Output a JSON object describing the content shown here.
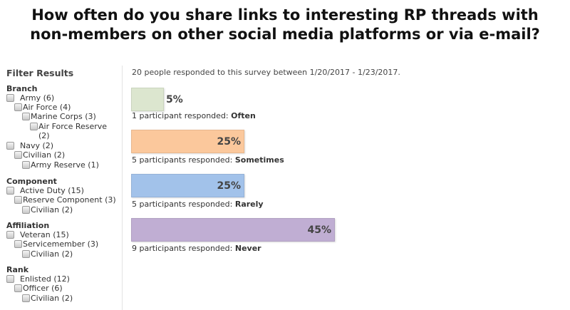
{
  "title_line1": "How often do you share links to interesting RP threads with",
  "title_line2": "non-members on other social media platforms or via e-mail?",
  "sidebar": {
    "heading": "Filter Results",
    "groups": [
      {
        "name": "Branch",
        "items": [
          {
            "label": "Army (6)"
          },
          {
            "label": "Air Force (4)"
          },
          {
            "label": "Marine Corps (3)"
          },
          {
            "label": "Air Force Reserve (2)"
          },
          {
            "label": "Navy (2)"
          },
          {
            "label": "Civilian (2)"
          },
          {
            "label": "Army Reserve (1)"
          }
        ]
      },
      {
        "name": "Component",
        "items": [
          {
            "label": "Active Duty (15)"
          },
          {
            "label": "Reserve Component (3)"
          },
          {
            "label": "Civilian (2)"
          }
        ]
      },
      {
        "name": "Affiliation",
        "items": [
          {
            "label": "Veteran (15)"
          },
          {
            "label": "Servicemember (3)"
          },
          {
            "label": "Civilian (2)"
          }
        ]
      },
      {
        "name": "Rank",
        "items": [
          {
            "label": "Enlisted (12)"
          },
          {
            "label": "Officer (6)"
          },
          {
            "label": "Civilian (2)"
          }
        ]
      }
    ]
  },
  "summary": "20 people responded to this survey between 1/20/2017 - 1/23/2017.",
  "responses": [
    {
      "percent_label": "5%",
      "percent": 5,
      "count_text": "1 participant responded: ",
      "answer": "Often",
      "color": "#dce6cf"
    },
    {
      "percent_label": "25%",
      "percent": 25,
      "count_text": "5 participants responded: ",
      "answer": "Sometimes",
      "color": "#fbc89c"
    },
    {
      "percent_label": "25%",
      "percent": 25,
      "count_text": "5 participants responded: ",
      "answer": "Rarely",
      "color": "#a2c2ea"
    },
    {
      "percent_label": "45%",
      "percent": 45,
      "count_text": "9 participants responded: ",
      "answer": "Never",
      "color": "#c0aed3"
    }
  ]
}
